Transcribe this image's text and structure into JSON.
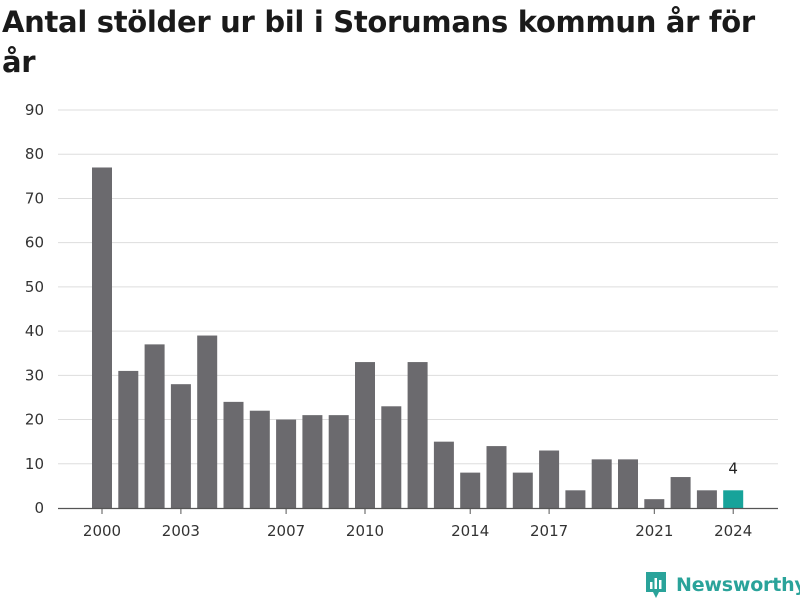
{
  "title": "Antal stölder ur bil i Storumans kommun år för år",
  "brand": {
    "name": "Newsworthy",
    "icon": "newsworthy-logo-icon",
    "color": "#2aa39a"
  },
  "colors": {
    "bar": "#6b6a6e",
    "highlight": "#17a39a",
    "grid": "#dddddd",
    "axis": "#555555"
  },
  "chart_data": {
    "type": "bar",
    "title": "Antal stölder ur bil i Storumans kommun år för år",
    "xlabel": "",
    "ylabel": "",
    "categories": [
      "2000",
      "2001",
      "2002",
      "2003",
      "2004",
      "2005",
      "2006",
      "2007",
      "2008",
      "2009",
      "2010",
      "2011",
      "2012",
      "2013",
      "2014",
      "2015",
      "2016",
      "2017",
      "2018",
      "2019",
      "2020",
      "2021",
      "2022",
      "2023",
      "2024"
    ],
    "values": [
      77,
      31,
      37,
      28,
      39,
      24,
      22,
      20,
      21,
      21,
      33,
      23,
      33,
      15,
      8,
      14,
      8,
      13,
      4,
      11,
      11,
      2,
      7,
      4,
      4
    ],
    "x_tick_labels": [
      "2000",
      "2003",
      "2007",
      "2010",
      "2014",
      "2017",
      "2021",
      "2024"
    ],
    "y_ticks": [
      0,
      10,
      20,
      30,
      40,
      50,
      60,
      70,
      80,
      90
    ],
    "ylim": [
      0,
      90
    ],
    "grid": true,
    "highlight_category": "2024",
    "data_labels": [
      {
        "category": "2024",
        "text": "4"
      }
    ]
  }
}
